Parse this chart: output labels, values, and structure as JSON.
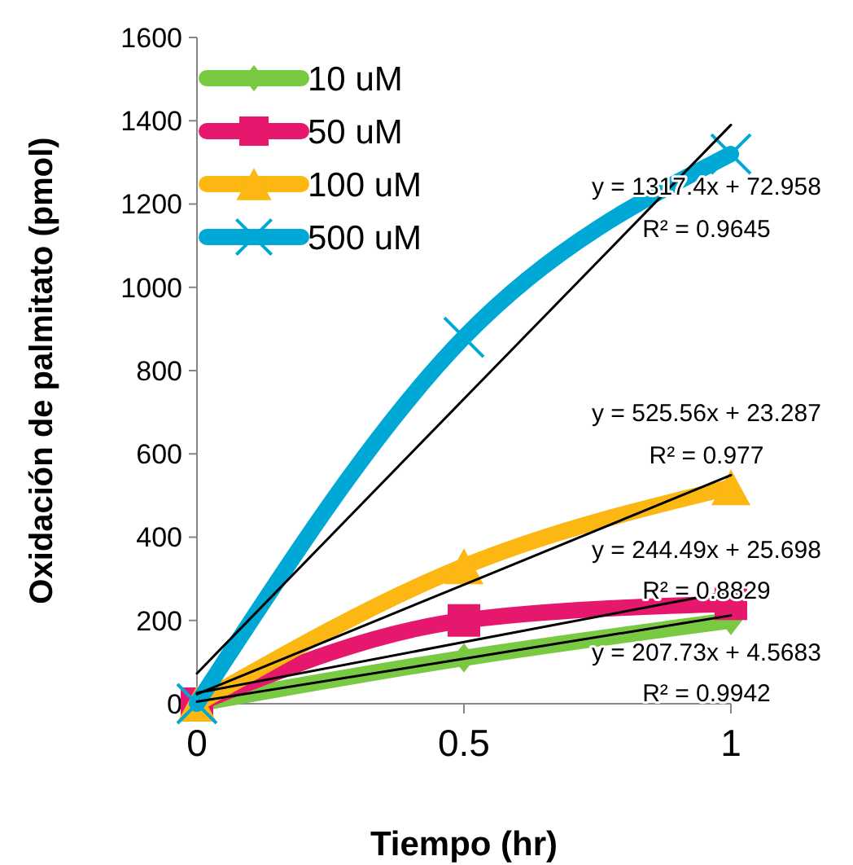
{
  "chart_data": {
    "type": "line",
    "xlabel": "Tiempo (hr)",
    "ylabel": "Oxidación de palmitato (pmol)",
    "x": [
      0,
      0.5,
      1
    ],
    "xlim": [
      0,
      1
    ],
    "xticks": [
      0,
      0.5,
      1
    ],
    "ylim": [
      0,
      1600
    ],
    "yticks": [
      0,
      200,
      400,
      600,
      800,
      1000,
      1200,
      1400,
      1600
    ],
    "grid": false,
    "legend": "top left",
    "series": [
      {
        "name": "10 uM",
        "color": "#7ac943",
        "values": [
          0,
          110,
          200
        ],
        "marker": "diamond"
      },
      {
        "name": "50 uM",
        "color": "#e6186e",
        "values": [
          0,
          200,
          240
        ],
        "marker": "square"
      },
      {
        "name": "100 uM",
        "color": "#fcb713",
        "values": [
          0,
          330,
          520
        ],
        "marker": "triangle"
      },
      {
        "name": "500 uM",
        "color": "#00a8d6",
        "values": [
          0,
          880,
          1320
        ],
        "marker": "cross"
      },
      {
        "type": "line",
        "color": "#000000",
        "values": [
          73,
          732,
          1390
        ]
      },
      {
        "type": "line",
        "color": "#000000",
        "values": [
          23,
          286,
          549
        ]
      },
      {
        "type": "line",
        "color": "#000000",
        "values": [
          26,
          148,
          270
        ]
      },
      {
        "type": "line",
        "color": "#000000",
        "values": [
          5,
          108,
          212
        ]
      }
    ],
    "annotations": [
      "y = 1317.4x + 72.958",
      "R² = 0.9645",
      "y = 525.56x + 23.287",
      "R² = 0.977",
      "y = 244.49x + 25.698",
      "R² = 0.8829",
      "y = 207.73x + 4.5683",
      "R² = 0.9942"
    ]
  }
}
